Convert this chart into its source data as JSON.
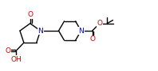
{
  "bg_color": "#ffffff",
  "bond_color": "#000000",
  "atom_colors": {
    "O": "#cc0000",
    "N": "#0000cc",
    "C": "#000000"
  },
  "bond_width": 1.0,
  "figsize": [
    1.98,
    0.9
  ],
  "dpi": 100,
  "xlim": [
    0,
    11.0
  ],
  "ylim": [
    0,
    5.0
  ]
}
